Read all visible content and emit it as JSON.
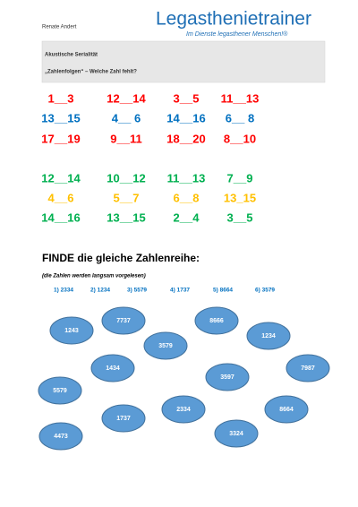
{
  "header": {
    "author": "Renate Andert",
    "logo": "Legasthenietrainer",
    "tagline": "Im Dienste legasthener Menschen!®"
  },
  "box": {
    "title": "Akustische Serialität",
    "subtitle": "„Zahlenfolgen“ – Welche Zahl fehlt?"
  },
  "rows": [
    {
      "color": "#ff0000",
      "items": [
        "1__3",
        "12__14",
        "3__5",
        "11__13"
      ]
    },
    {
      "color": "#0070c0",
      "items": [
        "13__15",
        "4__ 6",
        "14__16",
        "6__ 8"
      ]
    },
    {
      "color": "#ff0000",
      "items": [
        "17__19",
        "9__11",
        "18__20",
        "8__10"
      ]
    },
    {
      "color": "#00b050",
      "items": [
        "12__14",
        "10__12",
        "11__13",
        "7__9"
      ]
    },
    {
      "color": "#ffc000",
      "items": [
        "4__6",
        "5__7",
        "6__8",
        "13_15"
      ]
    },
    {
      "color": "#00b050",
      "items": [
        "14__16",
        "13__15",
        "2__4",
        "3__5"
      ]
    }
  ],
  "task": {
    "heading": "FINDE die gleiche Zahlenreihe:",
    "note": "(die Zahlen werden langsam vorgelesen)",
    "list": [
      "1)   2334",
      "2) 1234",
      "3) 5579",
      "4) 1737",
      "5) 8664",
      "6) 3579"
    ]
  },
  "bubbles": [
    "1243",
    "7737",
    "8666",
    "3579",
    "1234",
    "1434",
    "7987",
    "3597",
    "5579",
    "2334",
    "8664",
    "1737",
    "3324",
    "4473"
  ]
}
